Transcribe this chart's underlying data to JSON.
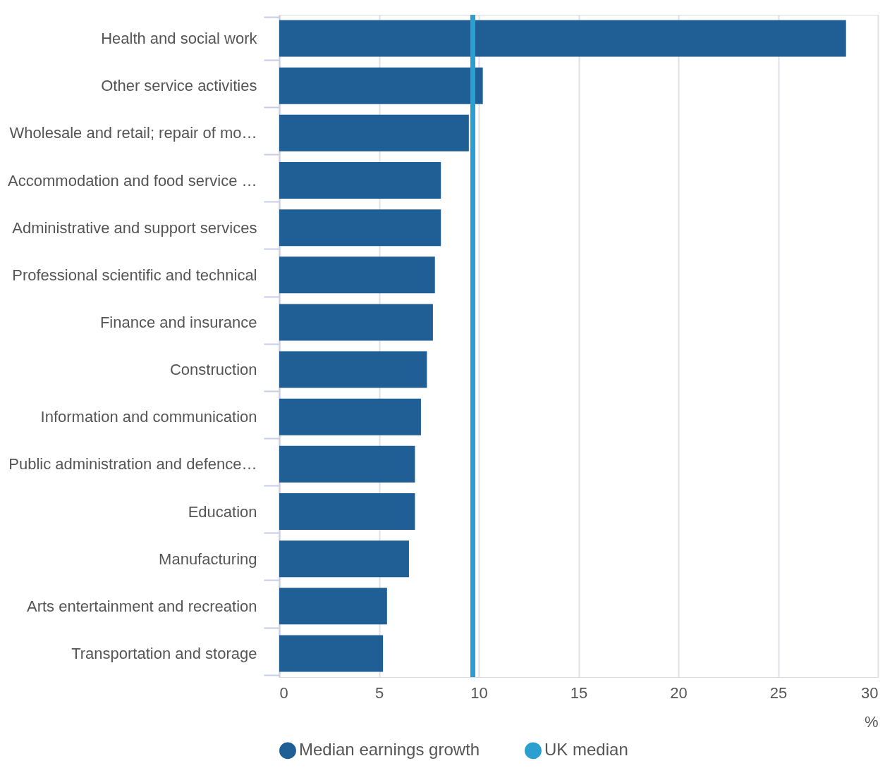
{
  "chart_data": {
    "type": "bar",
    "orientation": "horizontal",
    "xlabel": "%",
    "categories": [
      "Health and social work",
      "Other service activities",
      "Wholesale and retail; repair of mo…",
      "Accommodation and food service …",
      "Administrative and support services",
      "Professional scientific and technical",
      "Finance and insurance",
      "Construction",
      "Information and communication",
      "Public administration and defence…",
      "Education",
      "Manufacturing",
      "Arts entertainment and recreation",
      "Transportation and storage"
    ],
    "series": [
      {
        "name": "Median earnings growth",
        "color": "#1f5f96",
        "values": [
          28.4,
          10.2,
          9.5,
          8.1,
          8.1,
          7.8,
          7.7,
          7.4,
          7.1,
          6.8,
          6.8,
          6.5,
          5.4,
          5.2
        ]
      }
    ],
    "ref_lines": [
      {
        "axis": "x",
        "value": 9.7,
        "label": "UK median",
        "color": "#2a9fd0"
      }
    ],
    "xlim": [
      0,
      30
    ],
    "xticks": [
      0,
      5,
      10,
      15,
      20,
      25,
      30
    ],
    "grid": "x",
    "legend": "bottom"
  }
}
